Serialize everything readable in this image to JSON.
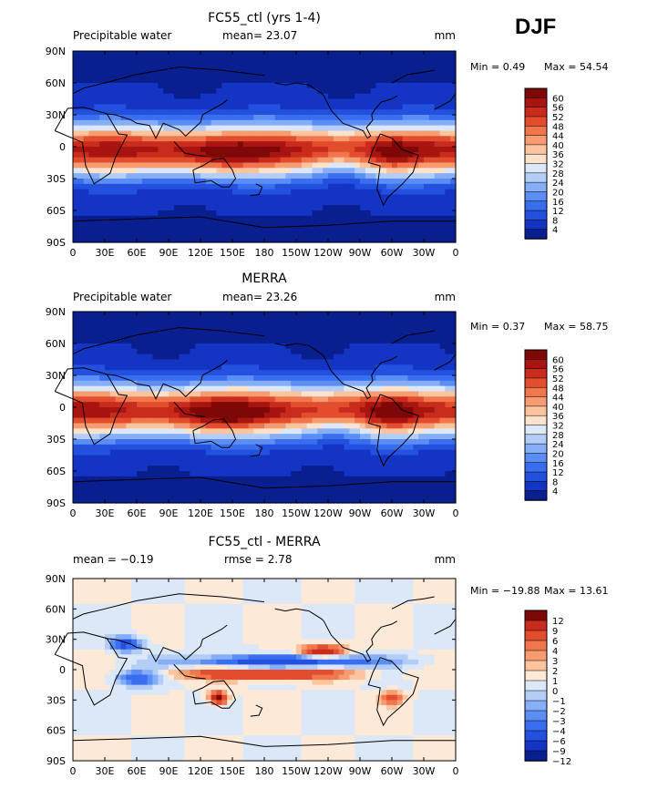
{
  "season": "DJF",
  "colors": {
    "abs_scale": [
      "#0a1f8f",
      "#1434c4",
      "#2450e0",
      "#3a6ef0",
      "#5b8ef5",
      "#86aef7",
      "#b3cdf7",
      "#dce8f7",
      "#fbe2cc",
      "#fbc39e",
      "#f79c70",
      "#f0764d",
      "#e24d2e",
      "#c92b1c",
      "#a81510",
      "#7e0808"
    ],
    "diff_scale": [
      "#0a1f8f",
      "#1434c4",
      "#2450e0",
      "#3a6ef0",
      "#5b8ef5",
      "#86aef7",
      "#b3cdf7",
      "#dce8f7",
      "#fde9d8",
      "#fbc39e",
      "#f79c70",
      "#f0764d",
      "#e24d2e",
      "#c92b1c",
      "#7e0808"
    ]
  },
  "chart_data": [
    {
      "type": "heatmap",
      "title": "FC55_ctl (yrs 1-4)",
      "variable_label": "Precipitable water",
      "stat_left": "",
      "stat_mid": "mean=   23.07",
      "units": "mm",
      "min_label": "Min =    0.49",
      "max_label": "Max =   54.54",
      "x_ticks": [
        "0",
        "30E",
        "60E",
        "90E",
        "120E",
        "150E",
        "180",
        "150W",
        "120W",
        "90W",
        "60W",
        "30W",
        "0"
      ],
      "y_ticks": [
        "90N",
        "60N",
        "30N",
        "0",
        "30S",
        "60S",
        "90S"
      ],
      "colorbar_levels": [
        "60",
        "56",
        "52",
        "48",
        "44",
        "40",
        "36",
        "32",
        "28",
        "24",
        "20",
        "16",
        "12",
        "8",
        "4"
      ],
      "scale": "abs"
    },
    {
      "type": "heatmap",
      "title": "MERRA",
      "variable_label": "Precipitable water",
      "stat_left": "",
      "stat_mid": "mean=   23.26",
      "units": "mm",
      "min_label": "Min =    0.37",
      "max_label": "Max =   58.75",
      "x_ticks": [
        "0",
        "30E",
        "60E",
        "90E",
        "120E",
        "150E",
        "180",
        "150W",
        "120W",
        "90W",
        "60W",
        "30W",
        "0"
      ],
      "y_ticks": [
        "90N",
        "60N",
        "30N",
        "0",
        "30S",
        "60S",
        "90S"
      ],
      "colorbar_levels": [
        "60",
        "56",
        "52",
        "48",
        "44",
        "40",
        "36",
        "32",
        "28",
        "24",
        "20",
        "16",
        "12",
        "8",
        "4"
      ],
      "scale": "abs"
    },
    {
      "type": "heatmap",
      "title": "FC55_ctl - MERRA",
      "variable_label": "",
      "stat_left": "mean =   −0.19",
      "stat_mid": "rmse =    2.78",
      "units": "mm",
      "min_label": "Min = −19.88",
      "max_label": "Max =   13.61",
      "x_ticks": [
        "0",
        "30E",
        "60E",
        "90E",
        "120E",
        "150E",
        "180",
        "150W",
        "120W",
        "90W",
        "60W",
        "30W",
        "0"
      ],
      "y_ticks": [
        "90N",
        "60N",
        "30N",
        "0",
        "30S",
        "60S",
        "90S"
      ],
      "colorbar_levels": [
        "12",
        "9",
        "6",
        "4",
        "3",
        "2",
        "1",
        "0",
        "−1",
        "−2",
        "−3",
        "−4",
        "−6",
        "−9",
        "−12"
      ],
      "scale": "diff"
    }
  ]
}
